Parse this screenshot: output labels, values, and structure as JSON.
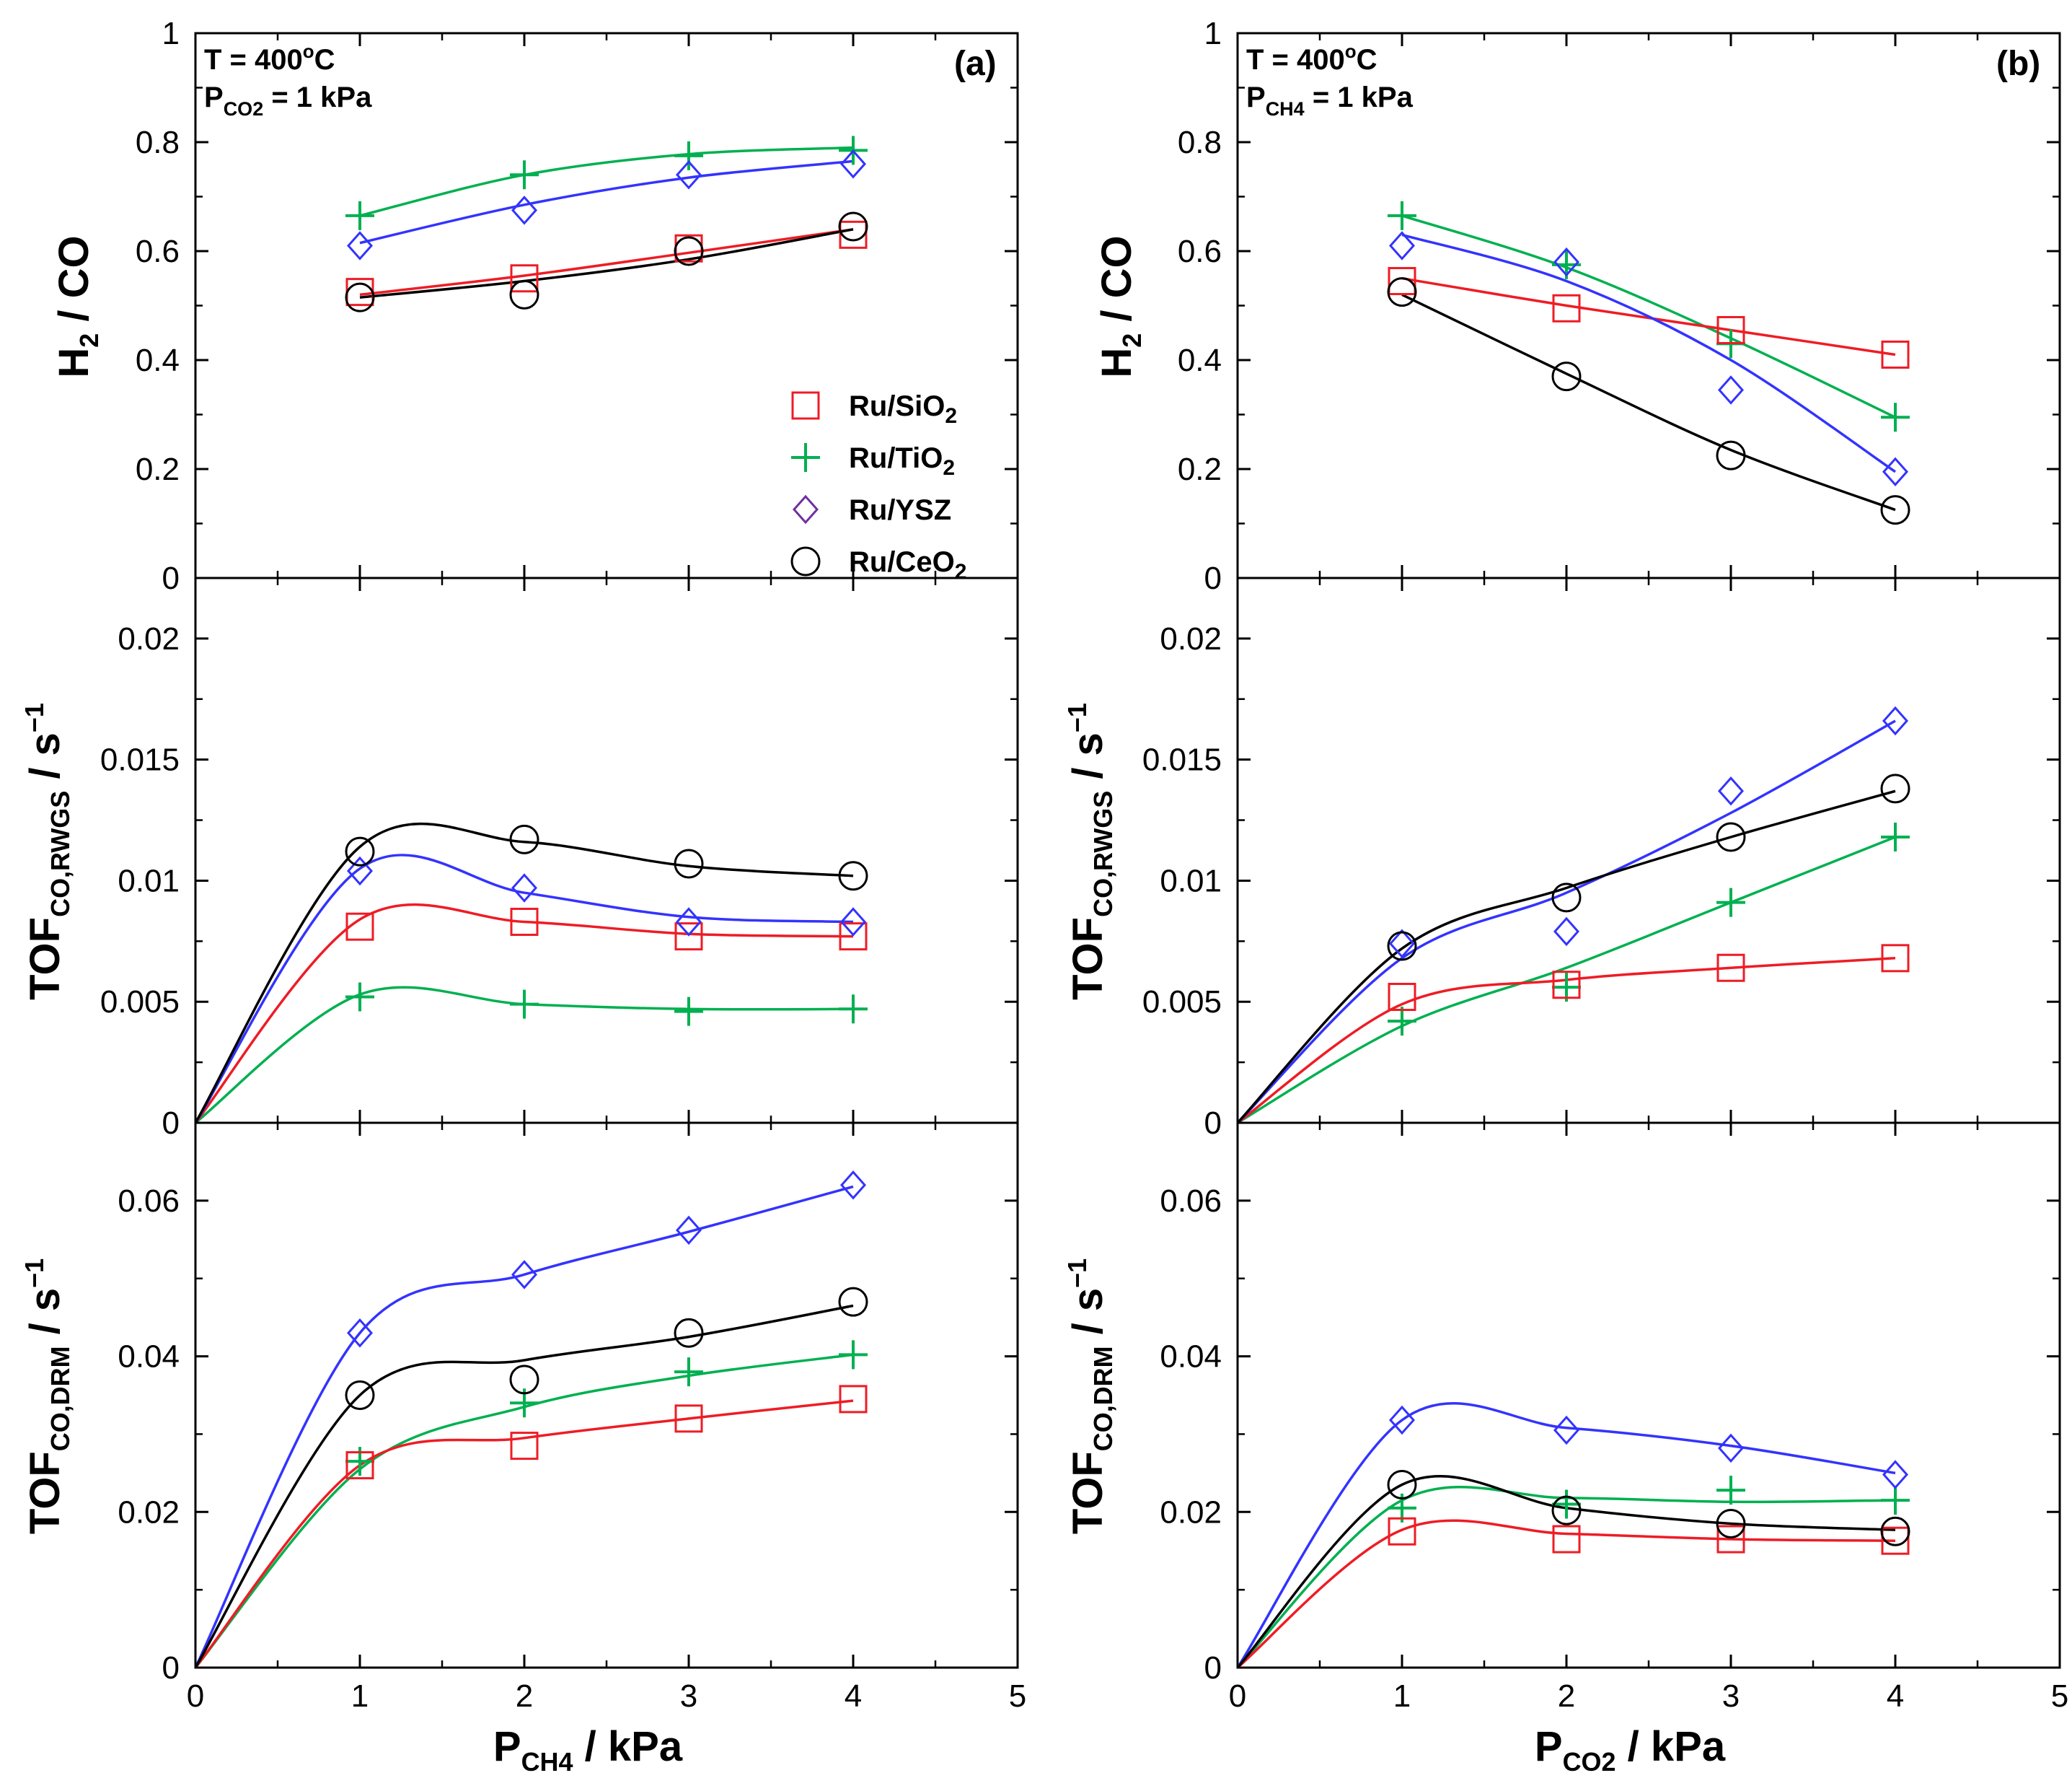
{
  "colors": {
    "Ru/SiO2": "#ee1c25",
    "Ru/TiO2": "#00b050",
    "Ru/YSZ": "#3333ff",
    "Ru/CeO2": "#000000",
    "legend_ysz_marker": "#7030a0"
  },
  "panels": {
    "a": {
      "label": "(a)",
      "ann_T": "T = 400",
      "ann_T_sup": "o",
      "ann_T_unit": "C",
      "ann_P": "P",
      "ann_P_sub": "CO2",
      "ann_P_val": " = 1 kPa",
      "xlabel_main": "P",
      "xlabel_sub": "CH4",
      "xlabel_rest": " / kPa"
    },
    "b": {
      "label": "(b)",
      "ann_T": "T = 400",
      "ann_T_sup": "o",
      "ann_T_unit": "C",
      "ann_P": "P",
      "ann_P_sub": "CH4",
      "ann_P_val": " = 1 kPa",
      "xlabel_main": "P",
      "xlabel_sub": "CO2",
      "xlabel_rest": " / kPa"
    }
  },
  "ylabels": {
    "h2co": {
      "p1": "H",
      "s1": "2",
      "p2": " / CO"
    },
    "rwgs": {
      "p1": "TOF",
      "s1": "CO,RWGS",
      "p2": " / s",
      "sup": "−1"
    },
    "drm": {
      "p1": "TOF",
      "s1": "CO,DRM",
      "p2": " / s",
      "sup": "−1"
    }
  },
  "legend": [
    {
      "name": "Ru/SiO2",
      "text": "Ru/SiO",
      "sub": "2",
      "marker": "square"
    },
    {
      "name": "Ru/TiO2",
      "text": "Ru/TiO",
      "sub": "2",
      "marker": "plus"
    },
    {
      "name": "Ru/YSZ",
      "text": "Ru/YSZ",
      "sub": "",
      "marker": "diamond"
    },
    {
      "name": "Ru/CeO2",
      "text": "Ru/CeO",
      "sub": "2",
      "marker": "circle"
    }
  ],
  "chart_data": [
    {
      "id": "a-top",
      "type": "scatter",
      "panel": "a",
      "x": [
        1,
        2,
        3,
        4
      ],
      "xlim": [
        0,
        5
      ],
      "ylim": [
        0,
        1
      ],
      "xticks": [
        0,
        1,
        2,
        3,
        4,
        5
      ],
      "yticks": [
        0,
        0.2,
        0.4,
        0.6,
        0.8,
        1
      ],
      "yticklabels": [
        "0",
        "0.2",
        "0.4",
        "0.6",
        "0.8",
        "1"
      ],
      "series": [
        {
          "name": "Ru/SiO2",
          "values": [
            0.525,
            0.55,
            0.605,
            0.63
          ],
          "fit": [
            0.52,
            0.555,
            0.597,
            0.64
          ],
          "fit_from_zero": false
        },
        {
          "name": "Ru/TiO2",
          "values": [
            0.665,
            0.74,
            0.775,
            0.785
          ],
          "fit": [
            0.665,
            0.74,
            0.778,
            0.79
          ],
          "fit_from_zero": false
        },
        {
          "name": "Ru/YSZ",
          "values": [
            0.61,
            0.675,
            0.74,
            0.76
          ],
          "fit": [
            0.615,
            0.685,
            0.735,
            0.765
          ],
          "fit_from_zero": false
        },
        {
          "name": "Ru/CeO2",
          "values": [
            0.515,
            0.52,
            0.6,
            0.645
          ],
          "fit": [
            0.515,
            0.545,
            0.585,
            0.64
          ],
          "fit_from_zero": false
        }
      ]
    },
    {
      "id": "a-mid",
      "type": "scatter",
      "panel": "a",
      "x": [
        1,
        2,
        3,
        4
      ],
      "xlim": [
        0,
        5
      ],
      "ylim": [
        0,
        0.0225
      ],
      "xticks": [
        0,
        1,
        2,
        3,
        4,
        5
      ],
      "yticks": [
        0,
        0.005,
        0.01,
        0.015,
        0.02
      ],
      "yticklabels": [
        "0",
        "0.005",
        "0.01",
        "0.015",
        "0.02"
      ],
      "series": [
        {
          "name": "Ru/SiO2",
          "values": [
            0.0081,
            0.0083,
            0.0077,
            0.0077
          ],
          "fit": [
            0.0084,
            0.0083,
            0.0078,
            0.0077
          ],
          "fit_from_zero": true
        },
        {
          "name": "Ru/TiO2",
          "values": [
            0.0052,
            0.0049,
            0.0046,
            0.0047
          ],
          "fit": [
            0.0053,
            0.0049,
            0.0047,
            0.0047
          ],
          "fit_from_zero": true
        },
        {
          "name": "Ru/YSZ",
          "values": [
            0.0104,
            0.0097,
            0.0083,
            0.0083
          ],
          "fit": [
            0.0105,
            0.0095,
            0.0085,
            0.0083
          ],
          "fit_from_zero": true
        },
        {
          "name": "Ru/CeO2",
          "values": [
            0.0112,
            0.0117,
            0.0107,
            0.0102
          ],
          "fit": [
            0.0114,
            0.0116,
            0.0106,
            0.0102
          ],
          "fit_from_zero": true
        }
      ]
    },
    {
      "id": "a-bot",
      "type": "scatter",
      "panel": "a",
      "x": [
        1,
        2,
        3,
        4
      ],
      "xlim": [
        0,
        5
      ],
      "ylim": [
        0,
        0.07
      ],
      "xticks": [
        0,
        1,
        2,
        3,
        4,
        5
      ],
      "yticks": [
        0,
        0.02,
        0.04,
        0.06
      ],
      "yticklabels": [
        "0",
        "0.02",
        "0.04",
        "0.06"
      ],
      "series": [
        {
          "name": "Ru/SiO2",
          "values": [
            0.026,
            0.0285,
            0.032,
            0.0345
          ],
          "fit": [
            0.026,
            0.0295,
            0.032,
            0.0343
          ],
          "fit_from_zero": true
        },
        {
          "name": "Ru/TiO2",
          "values": [
            0.0265,
            0.034,
            0.038,
            0.0402
          ],
          "fit": [
            0.0255,
            0.0335,
            0.0375,
            0.0402
          ],
          "fit_from_zero": true
        },
        {
          "name": "Ru/YSZ",
          "values": [
            0.043,
            0.0505,
            0.0562,
            0.062
          ],
          "fit": [
            0.043,
            0.0505,
            0.056,
            0.0618
          ],
          "fit_from_zero": true
        },
        {
          "name": "Ru/CeO2",
          "values": [
            0.035,
            0.037,
            0.043,
            0.047
          ],
          "fit": [
            0.035,
            0.0395,
            0.0425,
            0.0465
          ],
          "fit_from_zero": true
        }
      ]
    },
    {
      "id": "b-top",
      "type": "scatter",
      "panel": "b",
      "x": [
        1,
        2,
        3,
        4
      ],
      "xlim": [
        0,
        5
      ],
      "ylim": [
        0,
        1
      ],
      "xticks": [
        0,
        1,
        2,
        3,
        4,
        5
      ],
      "yticks": [
        0,
        0.2,
        0.4,
        0.6,
        0.8,
        1
      ],
      "yticklabels": [
        "0",
        "0.2",
        "0.4",
        "0.6",
        "0.8",
        "1"
      ],
      "series": [
        {
          "name": "Ru/SiO2",
          "values": [
            0.545,
            0.495,
            0.455,
            0.41
          ],
          "fit": [
            0.55,
            0.5,
            0.455,
            0.41
          ],
          "fit_from_zero": false
        },
        {
          "name": "Ru/TiO2",
          "values": [
            0.665,
            0.575,
            0.43,
            0.295
          ],
          "fit": [
            0.665,
            0.57,
            0.44,
            0.295
          ],
          "fit_from_zero": false
        },
        {
          "name": "Ru/YSZ",
          "values": [
            0.61,
            0.58,
            0.345,
            0.195
          ],
          "fit": [
            0.63,
            0.545,
            0.4,
            0.195
          ],
          "fit_from_zero": false
        },
        {
          "name": "Ru/CeO2",
          "values": [
            0.525,
            0.37,
            0.225,
            0.125
          ],
          "fit": [
            0.52,
            0.375,
            0.235,
            0.125
          ],
          "fit_from_zero": false
        }
      ]
    },
    {
      "id": "b-mid",
      "type": "scatter",
      "panel": "b",
      "x": [
        1,
        2,
        3,
        4
      ],
      "xlim": [
        0,
        5
      ],
      "ylim": [
        0,
        0.0225
      ],
      "xticks": [
        0,
        1,
        2,
        3,
        4,
        5
      ],
      "yticks": [
        0,
        0.005,
        0.01,
        0.015,
        0.02
      ],
      "yticklabels": [
        "0",
        "0.005",
        "0.01",
        "0.015",
        "0.02"
      ],
      "series": [
        {
          "name": "Ru/SiO2",
          "values": [
            0.0052,
            0.0057,
            0.0064,
            0.0068
          ],
          "fit": [
            0.0049,
            0.0059,
            0.0064,
            0.0068
          ],
          "fit_from_zero": true
        },
        {
          "name": "Ru/TiO2",
          "values": [
            0.0042,
            0.0056,
            0.0091,
            0.0118
          ],
          "fit": [
            0.004,
            0.0064,
            0.0091,
            0.0118
          ],
          "fit_from_zero": true
        },
        {
          "name": "Ru/YSZ",
          "values": [
            0.0074,
            0.0079,
            0.0137,
            0.0166
          ],
          "fit": [
            0.0068,
            0.0095,
            0.0128,
            0.0166
          ],
          "fit_from_zero": true
        },
        {
          "name": "Ru/CeO2",
          "values": [
            0.0073,
            0.0093,
            0.0118,
            0.0138
          ],
          "fit": [
            0.0072,
            0.0097,
            0.0118,
            0.0137
          ],
          "fit_from_zero": true
        }
      ]
    },
    {
      "id": "b-bot",
      "type": "scatter",
      "panel": "b",
      "x": [
        1,
        2,
        3,
        4
      ],
      "xlim": [
        0,
        5
      ],
      "ylim": [
        0,
        0.07
      ],
      "xticks": [
        0,
        1,
        2,
        3,
        4,
        5
      ],
      "yticks": [
        0,
        0.02,
        0.04,
        0.06
      ],
      "yticklabels": [
        "0",
        "0.02",
        "0.04",
        "0.06"
      ],
      "series": [
        {
          "name": "Ru/SiO2",
          "values": [
            0.0175,
            0.0165,
            0.0165,
            0.0163
          ],
          "fit": [
            0.0177,
            0.0172,
            0.0165,
            0.0163
          ],
          "fit_from_zero": true
        },
        {
          "name": "Ru/TiO2",
          "values": [
            0.0205,
            0.021,
            0.0228,
            0.0215
          ],
          "fit": [
            0.0215,
            0.0218,
            0.0213,
            0.0215
          ],
          "fit_from_zero": true
        },
        {
          "name": "Ru/YSZ",
          "values": [
            0.0318,
            0.0305,
            0.0282,
            0.0248
          ],
          "fit": [
            0.0318,
            0.0308,
            0.0285,
            0.025
          ],
          "fit_from_zero": true
        },
        {
          "name": "Ru/CeO2",
          "values": [
            0.0235,
            0.0202,
            0.0185,
            0.0175
          ],
          "fit": [
            0.0235,
            0.0205,
            0.0185,
            0.0177
          ],
          "fit_from_zero": true
        }
      ]
    }
  ]
}
